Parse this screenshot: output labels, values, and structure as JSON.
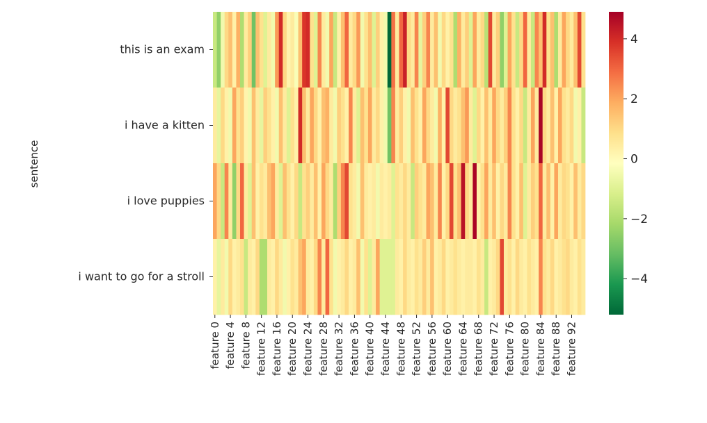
{
  "chart_data": {
    "type": "heatmap",
    "title": "",
    "xlabel": "",
    "ylabel": "sentence",
    "rows": [
      "this is an exam",
      "i have a kitten",
      "i love puppies",
      "i want to go for a stroll"
    ],
    "x_tick_labels": [
      "feature 0",
      "feature 4",
      "feature 8",
      "feature 12",
      "feature 16",
      "feature 20",
      "feature 24",
      "feature 28",
      "feature 32",
      "feature 36",
      "feature 40",
      "feature 44",
      "feature 48",
      "feature 52",
      "feature 56",
      "feature 60",
      "feature 64",
      "feature 68",
      "feature 72",
      "feature 76",
      "feature 80",
      "feature 84",
      "feature 88",
      "feature 92"
    ],
    "colormap": "RdYlGn_r",
    "color_range": [
      -5.2,
      4.9
    ],
    "colorbar_ticks": [
      "−4",
      "−2",
      "0",
      "2",
      "4"
    ],
    "colorbar_tick_values": [
      -4,
      -2,
      0,
      2,
      4
    ],
    "columns": 96,
    "values": [
      [
        -1.5,
        -2.5,
        -0.5,
        1.0,
        1.5,
        0.3,
        1.8,
        -2.0,
        0.5,
        1.2,
        -3.0,
        1.5,
        0.8,
        -1.0,
        0.5,
        -0.5,
        2.2,
        4.0,
        1.0,
        0.2,
        0.5,
        -0.3,
        1.5,
        3.8,
        4.0,
        0.8,
        -1.0,
        2.5,
        0.5,
        -0.5,
        2.0,
        -1.5,
        0.3,
        1.5,
        3.0,
        0.5,
        1.0,
        2.2,
        -0.5,
        0.8,
        1.5,
        -1.0,
        1.2,
        0.3,
        -0.5,
        -5.2,
        2.8,
        0.5,
        3.0,
        4.2,
        1.0,
        0.5,
        2.5,
        -0.8,
        1.2,
        2.5,
        0.5,
        1.5,
        -0.5,
        1.0,
        0.3,
        0.8,
        -2.0,
        1.8,
        0.5,
        1.2,
        -1.0,
        2.0,
        0.5,
        1.0,
        -1.8,
        3.5,
        0.5,
        1.2,
        -2.5,
        -1.0,
        2.0,
        0.8,
        -1.5,
        1.0,
        3.0,
        0.5,
        -1.5,
        2.5,
        1.5,
        4.0,
        0.8,
        1.5,
        -2.0,
        0.5,
        2.0,
        1.0,
        0.5,
        1.5,
        3.5,
        0.8
      ],
      [
        0.5,
        -0.8,
        1.0,
        0.3,
        -0.5,
        2.0,
        0.8,
        1.2,
        0.2,
        -0.5,
        1.5,
        0.5,
        -0.8,
        1.2,
        0.8,
        0.3,
        -0.5,
        1.5,
        0.5,
        -1.0,
        0.8,
        0.3,
        4.0,
        1.5,
        0.5,
        2.0,
        1.0,
        0.3,
        1.5,
        1.8,
        0.5,
        -0.5,
        1.2,
        0.8,
        0.3,
        2.5,
        0.5,
        -1.0,
        1.5,
        0.8,
        2.0,
        0.5,
        1.0,
        0.3,
        -0.5,
        -3.0,
        2.5,
        0.5,
        1.2,
        0.3,
        -0.5,
        1.5,
        0.8,
        0.3,
        2.0,
        1.0,
        0.5,
        -0.5,
        1.8,
        0.3,
        3.5,
        1.0,
        0.5,
        0.8,
        1.5,
        2.2,
        0.5,
        -1.0,
        1.0,
        0.3,
        1.5,
        0.5,
        2.0,
        1.0,
        0.5,
        1.2,
        2.5,
        0.8,
        0.3,
        1.0,
        -1.5,
        0.5,
        2.0,
        0.5,
        4.8,
        1.0,
        0.5,
        1.5,
        0.3,
        2.0,
        0.8,
        0.5,
        1.0,
        -0.5,
        0.3,
        -1.5
      ],
      [
        2.0,
        1.0,
        -1.5,
        2.5,
        0.5,
        -2.5,
        1.0,
        3.0,
        0.5,
        -1.0,
        1.5,
        0.3,
        0.8,
        0.5,
        1.5,
        2.0,
        0.5,
        -1.0,
        1.5,
        0.8,
        0.3,
        1.0,
        -1.5,
        0.8,
        1.2,
        0.5,
        1.5,
        0.3,
        2.0,
        1.0,
        0.5,
        -2.0,
        1.2,
        2.5,
        3.5,
        0.8,
        0.5,
        -0.5,
        1.5,
        0.5,
        0.3,
        0.5,
        -0.5,
        0.5,
        0.3,
        0.5,
        -1.0,
        0.8,
        0.5,
        1.0,
        0.5,
        -1.5,
        1.2,
        0.8,
        0.5,
        2.0,
        1.5,
        0.5,
        2.5,
        0.3,
        1.0,
        3.5,
        0.8,
        1.5,
        4.5,
        1.0,
        0.5,
        4.8,
        0.3,
        0.8,
        2.0,
        0.5,
        1.5,
        0.3,
        1.0,
        0.5,
        2.5,
        0.8,
        0.3,
        1.5,
        -1.0,
        0.5,
        1.2,
        0.8,
        3.0,
        0.5,
        1.5,
        0.3,
        2.0,
        0.5,
        1.0,
        0.8,
        0.3,
        1.5,
        0.5,
        1.0
      ],
      [
        0.3,
        -0.8,
        0.5,
        -0.5,
        1.0,
        0.3,
        0.5,
        0.8,
        -1.5,
        0.5,
        0.3,
        1.0,
        -2.0,
        -2.0,
        0.5,
        0.3,
        1.0,
        0.5,
        -0.5,
        0.3,
        0.8,
        0.5,
        1.5,
        2.0,
        0.5,
        0.3,
        1.0,
        2.5,
        0.5,
        3.0,
        0.8,
        -0.5,
        0.3,
        0.5,
        1.0,
        0.3,
        0.5,
        1.5,
        -0.5,
        0.8,
        -1.0,
        0.5,
        2.0,
        -1.0,
        -1.0,
        -1.0,
        -1.0,
        0.5,
        0.3,
        1.0,
        0.5,
        0.3,
        0.8,
        0.5,
        1.2,
        0.5,
        1.5,
        0.3,
        0.5,
        1.0,
        0.3,
        0.5,
        0.8,
        0.5,
        0.3,
        0.5,
        0.5,
        0.3,
        0.8,
        0.5,
        -1.5,
        0.3,
        0.5,
        1.0,
        3.5,
        0.5,
        0.8,
        0.3,
        1.0,
        0.5,
        0.3,
        0.8,
        0.5,
        0.3,
        2.5,
        0.8,
        0.5,
        1.0,
        0.3,
        0.5,
        0.8,
        1.0,
        0.5,
        0.3,
        0.8,
        0.5
      ]
    ]
  }
}
